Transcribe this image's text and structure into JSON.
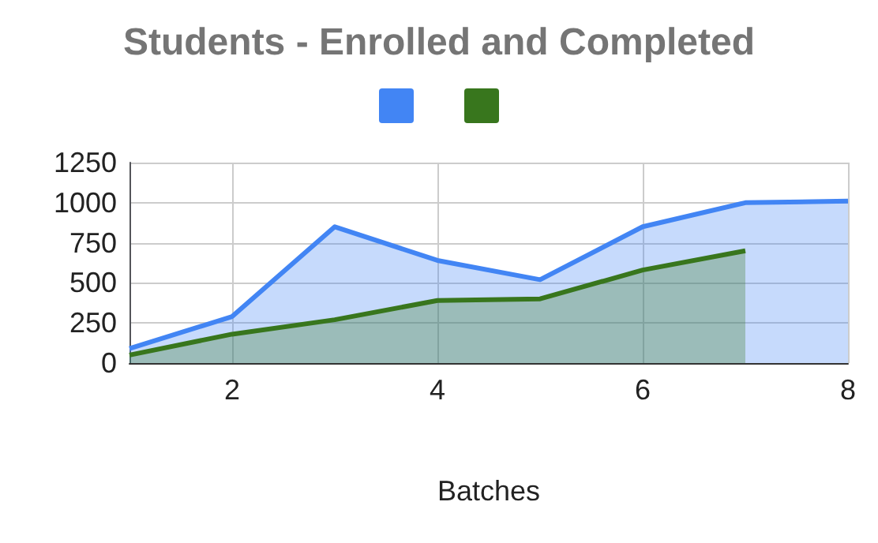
{
  "chart_data": {
    "type": "area",
    "title": "Students - Enrolled and Completed",
    "xlabel": "Batches",
    "x": [
      1,
      2,
      3,
      4,
      5,
      6,
      7,
      8
    ],
    "series": [
      {
        "color": "#4285f4",
        "values": [
          90,
          290,
          850,
          640,
          520,
          850,
          1000,
          1010
        ]
      },
      {
        "color": "#38761d",
        "values": [
          50,
          180,
          270,
          390,
          400,
          580,
          700,
          null
        ]
      }
    ],
    "xlim": [
      1,
      8
    ],
    "xticks": [
      2,
      4,
      6,
      8
    ],
    "ylim": [
      0,
      1250
    ],
    "yticks": [
      0,
      250,
      500,
      750,
      1000,
      1250
    ],
    "grid": true
  }
}
